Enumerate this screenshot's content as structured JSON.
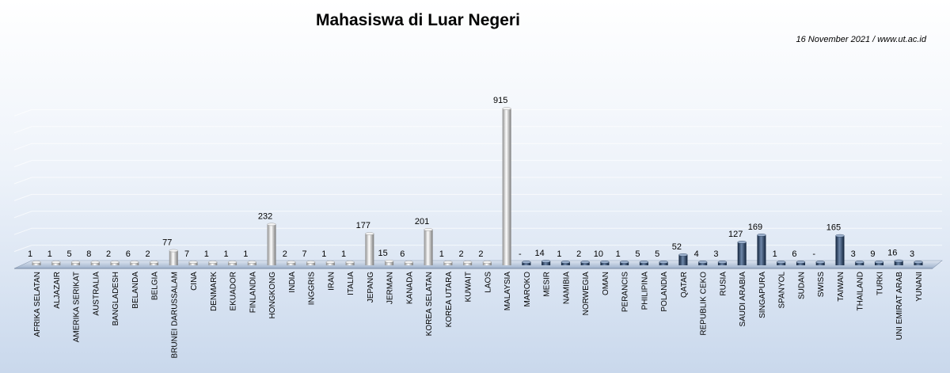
{
  "chart_data": {
    "type": "bar",
    "title": "Mahasiswa di Luar Negeri",
    "subtitle": "16 November 2021 / www.ut.ac.id",
    "xlabel": "",
    "ylabel": "",
    "ylim": [
      0,
      1000
    ],
    "grid": true,
    "categories": [
      "AFRIKA SELATAN",
      "ALJAZAIR",
      "AMERIKA SERIKAT",
      "AUSTRALIA",
      "BANGLADESH",
      "BELANDA",
      "BELGIA",
      "BRUNEI DARUSSALAM",
      "CINA",
      "DENMARK",
      "EKUADOR",
      "FINLANDIA",
      "HONGKONG",
      "INDIA",
      "INGGRIS",
      "IRAN",
      "ITALIA",
      "JEPANG",
      "JERMAN",
      "KANADA",
      "KOREA SELATAN",
      "KOREA UTARA",
      "KUWAIT",
      "LAOS",
      "MALAYSIA",
      "MAROKO",
      "MESIR",
      "NAMIBIA",
      "NORWEGIA",
      "OMAN",
      "PERANCIS",
      "PHILIPINA",
      "POLANDIA",
      "QATAR",
      "REPUBLIK CEKO",
      "RUSIA",
      "SAUDI ARABIA",
      "SINGAPURA",
      "SPANYOL",
      "SUDAN",
      "SWISS",
      "TAIWAN",
      "THAILAND",
      "TURKI",
      "UNI EMIRAT ARAB",
      "YUNANI"
    ],
    "values": [
      1,
      1,
      5,
      8,
      2,
      6,
      2,
      77,
      7,
      1,
      1,
      1,
      232,
      2,
      7,
      1,
      1,
      177,
      15,
      6,
      201,
      1,
      2,
      2,
      915,
      0,
      14,
      1,
      2,
      10,
      1,
      5,
      5,
      52,
      4,
      3,
      127,
      169,
      1,
      6,
      0,
      165,
      3,
      9,
      16,
      3
    ],
    "value_labels": [
      "1",
      "1",
      "5",
      "8",
      "2",
      "6",
      "2",
      "77",
      "7",
      "1",
      "1",
      "1",
      "232",
      "2",
      "7",
      "1",
      "1",
      "177",
      "15",
      "6",
      "201",
      "1",
      "2",
      "2",
      "915",
      "-",
      "14",
      "1",
      "2",
      "10",
      "1",
      "5",
      "5",
      "52",
      "4",
      "3",
      "127",
      "169",
      "1",
      "6",
      "-",
      "165",
      "3",
      "9",
      "16",
      "3"
    ]
  }
}
